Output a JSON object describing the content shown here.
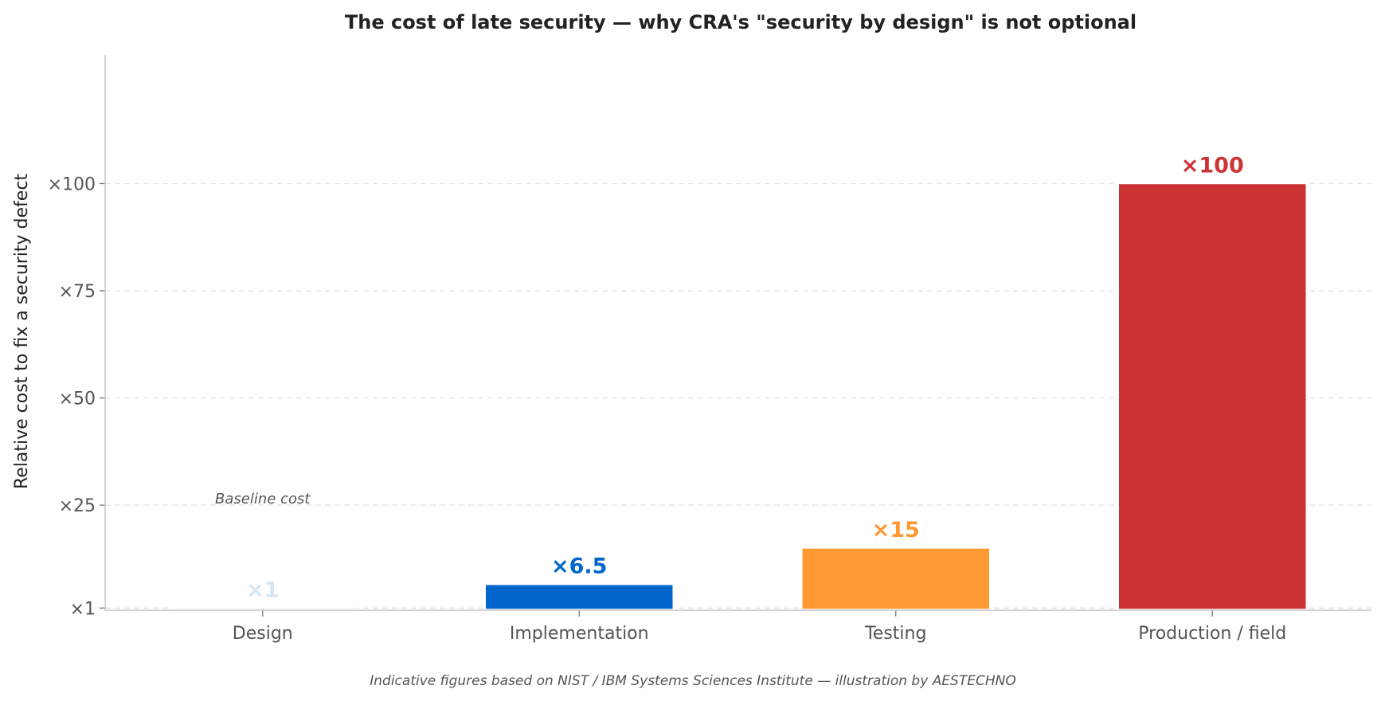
{
  "chart_data": {
    "type": "bar",
    "title": "The cost of late security — why CRA's \"security by design\" is not optional",
    "xlabel": "",
    "ylabel": "Relative cost to fix a security defect",
    "categories": [
      "Design",
      "Implementation",
      "Testing",
      "Production / field"
    ],
    "values": [
      1,
      6.5,
      15,
      100
    ],
    "value_labels": [
      "×1",
      "×6.5",
      "×15",
      "×100"
    ],
    "colors": [
      "#d6e6f4",
      "#0066cc",
      "#ff9933",
      "#cc3333"
    ],
    "yticks": [
      1,
      25,
      50,
      75,
      100
    ],
    "ytick_labels": [
      "×1",
      "×25",
      "×50",
      "×75",
      "×100"
    ],
    "ylim": [
      0.5,
      130
    ],
    "grid": "horizontal dashed",
    "annotation": {
      "text": "Baseline cost",
      "category": "Design",
      "y": 25
    },
    "footnote": "Indicative figures based on NIST / IBM Systems Sciences Institute — illustration by AESTECHNO"
  }
}
